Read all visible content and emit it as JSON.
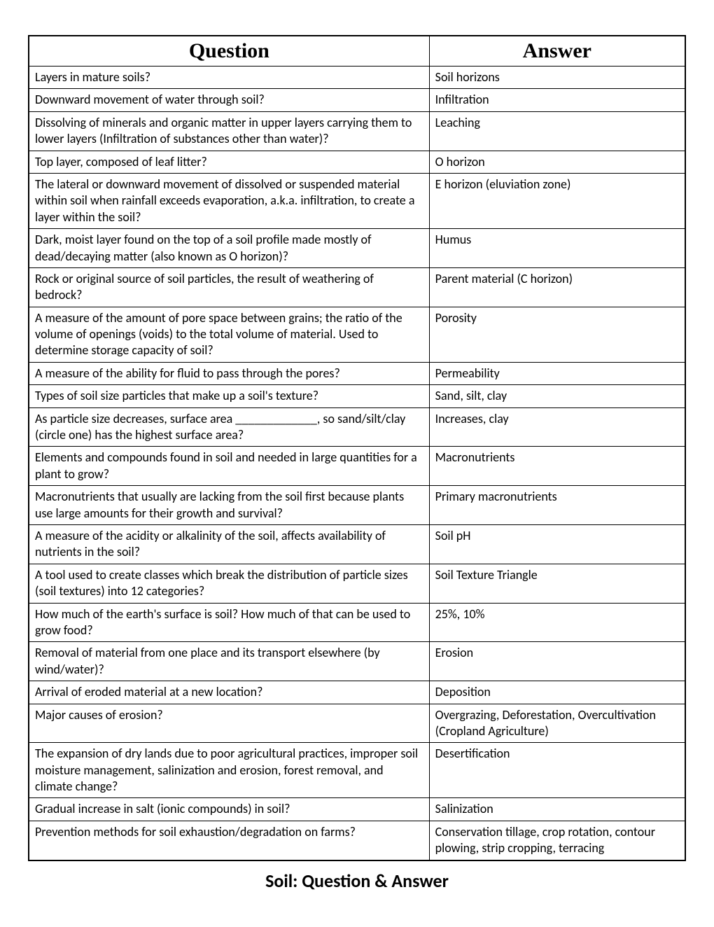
{
  "headers": {
    "question": "Question",
    "answer": "Answer"
  },
  "rows": [
    {
      "q": "Layers in mature soils?",
      "a": "Soil horizons"
    },
    {
      "q": "Downward movement of water through soil?",
      "a": "Infiltration"
    },
    {
      "q": "Dissolving of minerals and organic matter in upper layers carrying them to lower layers (Infiltration of substances other than water)?",
      "a": "Leaching"
    },
    {
      "q": "Top layer, composed of leaf litter?",
      "a": "O horizon"
    },
    {
      "q": "The lateral or downward movement of dissolved or suspended material within soil when rainfall exceeds evaporation, a.k.a. infiltration, to create a layer within the soil?",
      "a": "E horizon (eluviation zone)"
    },
    {
      "q": "Dark, moist layer found on the top of a soil profile made mostly of dead/decaying matter (also known as O horizon)?",
      "a": "Humus"
    },
    {
      "q": "Rock or original source of soil particles, the result of weathering of bedrock?",
      "a": "Parent material (C horizon)"
    },
    {
      "q": "A measure of the amount of pore space between grains; the ratio of the volume of openings (voids) to the total volume of material. Used to determine storage capacity of soil?",
      "a": "Porosity"
    },
    {
      "q": "A measure of the ability for fluid to pass through the pores?",
      "a": "Permeability"
    },
    {
      "q": "Types of soil size particles that make up a soil's texture?",
      "a": "Sand, silt, clay"
    },
    {
      "q": "As particle size decreases, surface area _____________, so sand/silt/clay (circle one) has the highest surface area?",
      "a": "Increases, clay"
    },
    {
      "q": "Elements and compounds found in soil and needed in large quantities for a plant to grow?",
      "a": "Macronutrients"
    },
    {
      "q": "Macronutrients that usually are lacking from the soil first because plants use large amounts for their growth and survival?",
      "a": "Primary macronutrients"
    },
    {
      "q": "A measure of the acidity or alkalinity of the soil, affects availability of nutrients in the soil?",
      "a": "Soil pH"
    },
    {
      "q": "A tool used to create classes which break the distribution of particle sizes (soil textures) into 12 categories?",
      "a": "Soil Texture Triangle"
    },
    {
      "q": "How much of the earth's surface is soil? How much of that can be used to grow food?",
      "a": "25%, 10%"
    },
    {
      "q": "Removal of material from one place and its transport elsewhere (by wind/water)?",
      "a": "Erosion"
    },
    {
      "q": "Arrival of eroded material at a new location?",
      "a": "Deposition"
    },
    {
      "q": "Major causes of erosion?",
      "a": "Overgrazing, Deforestation, Overcultivation (Cropland Agriculture)"
    },
    {
      "q": "The expansion of dry lands due to poor agricultural practices, improper soil moisture management, salinization and erosion, forest removal, and climate change?",
      "a": "Desertification"
    },
    {
      "q": "Gradual increase in salt (ionic compounds) in soil?",
      "a": "Salinization"
    },
    {
      "q": "Prevention methods for soil exhaustion/degradation on farms?",
      "a": "Conservation tillage, crop rotation, contour plowing, strip cropping, terracing"
    }
  ],
  "pageTitle": "Soil: Question & Answer",
  "styling": {
    "pageWidth": 1020,
    "pageHeight": 1320,
    "tableBorderColor": "#000000",
    "tableBorderWidth": 2,
    "cellBorderWidth": 1,
    "headerFontSize": 30,
    "headerFontFamily": "Times New Roman",
    "headerFontWeight": "bold",
    "cellFontSize": 18,
    "cellFontFamily": "Calibri",
    "pageTitleFontSize": 26,
    "pageTitleFontWeight": "bold",
    "backgroundColor": "#ffffff",
    "textColor": "#000000",
    "questionColWidth": "61%",
    "answerColWidth": "39%"
  }
}
